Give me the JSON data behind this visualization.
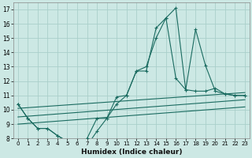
{
  "xlabel": "Humidex (Indice chaleur)",
  "xlim": [
    -0.5,
    23.5
  ],
  "ylim": [
    8,
    17.5
  ],
  "xticks": [
    0,
    1,
    2,
    3,
    4,
    5,
    6,
    7,
    8,
    9,
    10,
    11,
    12,
    13,
    14,
    15,
    16,
    17,
    18,
    19,
    20,
    21,
    22,
    23
  ],
  "yticks": [
    8,
    9,
    10,
    11,
    12,
    13,
    14,
    15,
    16,
    17
  ],
  "bg_color": "#cce8e4",
  "grid_color": "#aacfca",
  "line_color": "#1a6b60",
  "line1_x": [
    0,
    1,
    2,
    3,
    4,
    5,
    6,
    7,
    8,
    9,
    10,
    11,
    12,
    13,
    14,
    15,
    16,
    17,
    18,
    19,
    20,
    21,
    22,
    23
  ],
  "line1_y": [
    10.4,
    9.4,
    8.7,
    8.7,
    8.2,
    7.8,
    7.2,
    7.5,
    8.5,
    9.4,
    10.9,
    11.0,
    12.7,
    13.0,
    15.0,
    16.4,
    17.1,
    11.4,
    15.6,
    13.1,
    11.3,
    11.1,
    11.0,
    11.0
  ],
  "line2_x": [
    0,
    1,
    2,
    3,
    4,
    5,
    6,
    7,
    8,
    9,
    10,
    11,
    12,
    13,
    14,
    15,
    16,
    17,
    18,
    19,
    20,
    21,
    22,
    23
  ],
  "line2_y": [
    10.4,
    9.4,
    8.7,
    8.7,
    8.2,
    7.8,
    7.5,
    8.0,
    9.4,
    9.4,
    10.4,
    11.0,
    12.7,
    12.7,
    15.7,
    16.4,
    12.2,
    11.4,
    11.3,
    11.3,
    11.5,
    11.1,
    11.0,
    11.0
  ],
  "line3_x": [
    0,
    23
  ],
  "line3_y": [
    10.1,
    11.2
  ],
  "line4_x": [
    0,
    23
  ],
  "line4_y": [
    9.5,
    10.7
  ],
  "line5_x": [
    0,
    23
  ],
  "line5_y": [
    9.0,
    10.2
  ]
}
